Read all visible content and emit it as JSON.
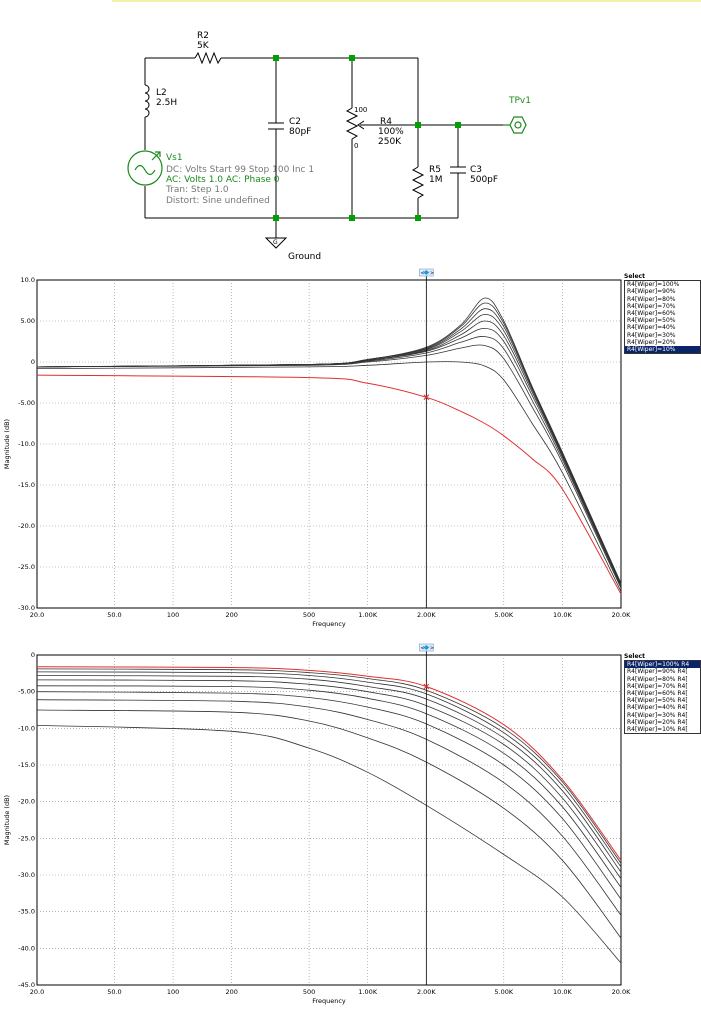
{
  "schematic": {
    "r2": {
      "name": "R2",
      "value": "5K"
    },
    "l2": {
      "name": "L2",
      "value": "2.5H"
    },
    "c2": {
      "name": "C2",
      "value": "80pF"
    },
    "r4": {
      "name": "R4",
      "value": "100%",
      "value2": "250K",
      "top_label": "100",
      "bottom_label": "0"
    },
    "r5": {
      "name": "R5",
      "value": "1M"
    },
    "c3": {
      "name": "C3",
      "value": "500pF"
    },
    "tp": {
      "name": "TPv1"
    },
    "vs1": {
      "name": "Vs1",
      "dc": "DC: Volts  Start 99 Stop 100 Inc 1",
      "ac": "AC: Volts  1.0  AC: Phase  0",
      "tran": "Tran: Step  1.0",
      "distort": "Distort: Sine  undefined"
    },
    "ground": "Ground",
    "ground_symbol": "G"
  },
  "colors": {
    "accent_green": "#1a8a1a",
    "trace": "#333333",
    "highlight": "#e03030",
    "selected": "#0a246a"
  },
  "chart_data": [
    {
      "type": "line",
      "ylabel": "Magnitude (dB)",
      "xlabel": "Frequency",
      "xscale": "log",
      "xlim": [
        20,
        20000
      ],
      "ylim": [
        -30,
        10
      ],
      "x_ticks": [
        "20.0",
        "50.0",
        "100",
        "200",
        "500",
        "1.00K",
        "2.00K",
        "5.00K",
        "10.0K",
        "20.0K"
      ],
      "y_ticks": [
        "10.0",
        "5.00",
        "0",
        "-5.00",
        "-10.0",
        "-15.0",
        "-20.0",
        "-25.0",
        "-30.0"
      ],
      "cursor_x": 2000,
      "legend": {
        "header": "Select",
        "placement": "right",
        "items": [
          "R4[Wiper]=100%",
          "R4[Wiper]=90%",
          "R4[Wiper]=80%",
          "R4[Wiper]=70%",
          "R4[Wiper]=60%",
          "R4[Wiper]=50%",
          "R4[Wiper]=40%",
          "R4[Wiper]=30%",
          "R4[Wiper]=20%",
          "R4[Wiper]=10%"
        ],
        "selected": 9
      },
      "series": [
        {
          "name": "R4[Wiper]=100%",
          "x": [
            20,
            500,
            1000,
            2000,
            3000,
            4000,
            5000,
            7000,
            10000,
            20000
          ],
          "values": [
            -0.6,
            -0.3,
            0.3,
            1.8,
            4.5,
            7.8,
            5.0,
            -3.0,
            -11.0,
            -27.0
          ]
        },
        {
          "name": "R4[Wiper]=90%",
          "x": [
            20,
            500,
            1000,
            2000,
            3000,
            4000,
            5000,
            7000,
            10000,
            20000
          ],
          "values": [
            -0.6,
            -0.3,
            0.3,
            1.7,
            4.3,
            7.2,
            4.7,
            -3.1,
            -11.1,
            -27.0
          ]
        },
        {
          "name": "R4[Wiper]=80%",
          "x": [
            20,
            500,
            1000,
            2000,
            3000,
            4000,
            5000,
            7000,
            10000,
            20000
          ],
          "values": [
            -0.6,
            -0.3,
            0.3,
            1.6,
            4.0,
            6.5,
            4.3,
            -3.2,
            -11.2,
            -27.1
          ]
        },
        {
          "name": "R4[Wiper]=70%",
          "x": [
            20,
            500,
            1000,
            2000,
            3000,
            4000,
            5000,
            7000,
            10000,
            20000
          ],
          "values": [
            -0.6,
            -0.3,
            0.2,
            1.5,
            3.7,
            5.8,
            3.8,
            -3.4,
            -11.3,
            -27.1
          ]
        },
        {
          "name": "R4[Wiper]=60%",
          "x": [
            20,
            500,
            1000,
            2000,
            3000,
            4000,
            5000,
            7000,
            10000,
            20000
          ],
          "values": [
            -0.6,
            -0.3,
            0.2,
            1.4,
            3.3,
            5.0,
            3.2,
            -3.7,
            -11.4,
            -27.2
          ]
        },
        {
          "name": "R4[Wiper]=50%",
          "x": [
            20,
            500,
            1000,
            2000,
            3000,
            4000,
            5000,
            7000,
            10000,
            20000
          ],
          "values": [
            -0.6,
            -0.3,
            0.2,
            1.3,
            2.9,
            4.1,
            2.5,
            -4.1,
            -11.6,
            -27.3
          ]
        },
        {
          "name": "R4[Wiper]=40%",
          "x": [
            20,
            500,
            1000,
            2000,
            3000,
            4000,
            5000,
            7000,
            10000,
            20000
          ],
          "values": [
            -0.6,
            -0.3,
            0.1,
            1.1,
            2.4,
            3.1,
            1.6,
            -4.7,
            -11.9,
            -27.4
          ]
        },
        {
          "name": "R4[Wiper]=30%",
          "x": [
            20,
            500,
            1000,
            2000,
            3000,
            4000,
            5000,
            7000,
            10000,
            20000
          ],
          "values": [
            -0.6,
            -0.4,
            0.0,
            0.8,
            1.7,
            2.0,
            0.4,
            -5.5,
            -12.3,
            -27.6
          ]
        },
        {
          "name": "R4[Wiper]=20%",
          "x": [
            20,
            500,
            1000,
            2000,
            3000,
            4000,
            5000,
            7000,
            10000,
            20000
          ],
          "values": [
            -0.8,
            -0.6,
            -0.4,
            0.0,
            0.0,
            -0.5,
            -2.2,
            -7.5,
            -13.5,
            -28.0
          ]
        },
        {
          "name": "R4[Wiper]=10%",
          "x": [
            20,
            500,
            1000,
            2000,
            3000,
            4000,
            5000,
            7000,
            10000,
            20000
          ],
          "values": [
            -1.6,
            -1.9,
            -2.6,
            -4.3,
            -6.0,
            -7.5,
            -9.0,
            -11.8,
            -15.5,
            -28.3
          ]
        }
      ]
    },
    {
      "type": "line",
      "ylabel": "Magnitude (dB)",
      "xlabel": "Frequency",
      "xscale": "log",
      "xlim": [
        20,
        20000
      ],
      "ylim": [
        -45,
        0
      ],
      "x_ticks": [
        "20.0",
        "50.0",
        "100",
        "200",
        "500",
        "1.00K",
        "2.00K",
        "5.00K",
        "10.0K",
        "20.0K"
      ],
      "y_ticks": [
        "0",
        "-5.00",
        "-10.0",
        "-15.0",
        "-20.0",
        "-25.0",
        "-30.0",
        "-35.0",
        "-40.0",
        "-45.0"
      ],
      "cursor_x": 2000,
      "legend": {
        "header": "Select",
        "placement": "right",
        "items": [
          "R4[Wiper]=100%  R4",
          "R4[Wiper]=90%  R4[",
          "R4[Wiper]=80%  R4[",
          "R4[Wiper]=70%  R4[",
          "R4[Wiper]=60%  R4[",
          "R4[Wiper]=50%  R4[",
          "R4[Wiper]=40%  R4[",
          "R4[Wiper]=30%  R4[",
          "R4[Wiper]=20%  R4[",
          "R4[Wiper]=10%  R4["
        ],
        "selected": 0
      },
      "series": [
        {
          "name": "R4[Wiper]=100%",
          "x": [
            20,
            200,
            500,
            1000,
            2000,
            5000,
            10000,
            20000
          ],
          "values": [
            -1.6,
            -1.7,
            -2.1,
            -2.9,
            -4.3,
            -9.5,
            -17.0,
            -28.0
          ]
        },
        {
          "name": "R4[Wiper]=90%",
          "x": [
            20,
            200,
            500,
            1000,
            2000,
            5000,
            10000,
            20000
          ],
          "values": [
            -1.9,
            -2.0,
            -2.4,
            -3.2,
            -4.8,
            -10.0,
            -17.3,
            -28.4
          ]
        },
        {
          "name": "R4[Wiper]=80%",
          "x": [
            20,
            200,
            500,
            1000,
            2000,
            5000,
            10000,
            20000
          ],
          "values": [
            -2.3,
            -2.4,
            -2.8,
            -3.7,
            -5.3,
            -10.6,
            -17.8,
            -28.9
          ]
        },
        {
          "name": "R4[Wiper]=70%",
          "x": [
            20,
            200,
            500,
            1000,
            2000,
            5000,
            10000,
            20000
          ],
          "values": [
            -2.8,
            -2.9,
            -3.3,
            -4.3,
            -6.0,
            -11.3,
            -18.5,
            -29.6
          ]
        },
        {
          "name": "R4[Wiper]=60%",
          "x": [
            20,
            200,
            500,
            1000,
            2000,
            5000,
            10000,
            20000
          ],
          "values": [
            -3.4,
            -3.5,
            -4.0,
            -5.0,
            -6.9,
            -12.2,
            -19.5,
            -30.5
          ]
        },
        {
          "name": "R4[Wiper]=50%",
          "x": [
            20,
            200,
            500,
            1000,
            2000,
            5000,
            10000,
            20000
          ],
          "values": [
            -4.2,
            -4.3,
            -4.8,
            -5.9,
            -8.0,
            -13.4,
            -20.7,
            -31.7
          ]
        },
        {
          "name": "R4[Wiper]=40%",
          "x": [
            20,
            200,
            500,
            1000,
            2000,
            5000,
            10000,
            20000
          ],
          "values": [
            -5.0,
            -5.2,
            -5.8,
            -7.1,
            -9.4,
            -15.0,
            -22.3,
            -33.3
          ]
        },
        {
          "name": "R4[Wiper]=30%",
          "x": [
            20,
            200,
            500,
            1000,
            2000,
            5000,
            10000,
            20000
          ],
          "values": [
            -6.1,
            -6.3,
            -7.1,
            -8.8,
            -11.5,
            -17.4,
            -24.7,
            -35.5
          ]
        },
        {
          "name": "R4[Wiper]=20%",
          "x": [
            20,
            200,
            500,
            1000,
            2000,
            5000,
            10000,
            20000
          ],
          "values": [
            -7.5,
            -7.8,
            -9.0,
            -11.3,
            -14.6,
            -20.9,
            -28.0,
            -38.6
          ]
        },
        {
          "name": "R4[Wiper]=10%",
          "x": [
            20,
            200,
            500,
            1000,
            2000,
            5000,
            10000,
            20000
          ],
          "values": [
            -9.6,
            -10.4,
            -12.7,
            -16.0,
            -20.5,
            -27.2,
            -33.0,
            -42.0
          ]
        }
      ]
    }
  ]
}
